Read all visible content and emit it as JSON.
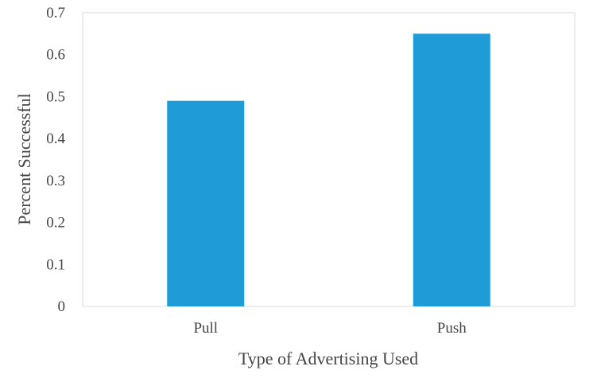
{
  "chart_data": {
    "type": "bar",
    "categories": [
      "Pull",
      "Push"
    ],
    "values": [
      0.49,
      0.65
    ],
    "xlabel": "Type of Advertising Used",
    "ylabel": "Percent Successful",
    "ylim": [
      0,
      0.7
    ],
    "yticks": [
      "0",
      "0.1",
      "0.2",
      "0.3",
      "0.4",
      "0.5",
      "0.6",
      "0.7"
    ],
    "grid": false,
    "legend": "none",
    "bar_color": "#1f9bd8",
    "frame_color": "#d9d9d9"
  }
}
